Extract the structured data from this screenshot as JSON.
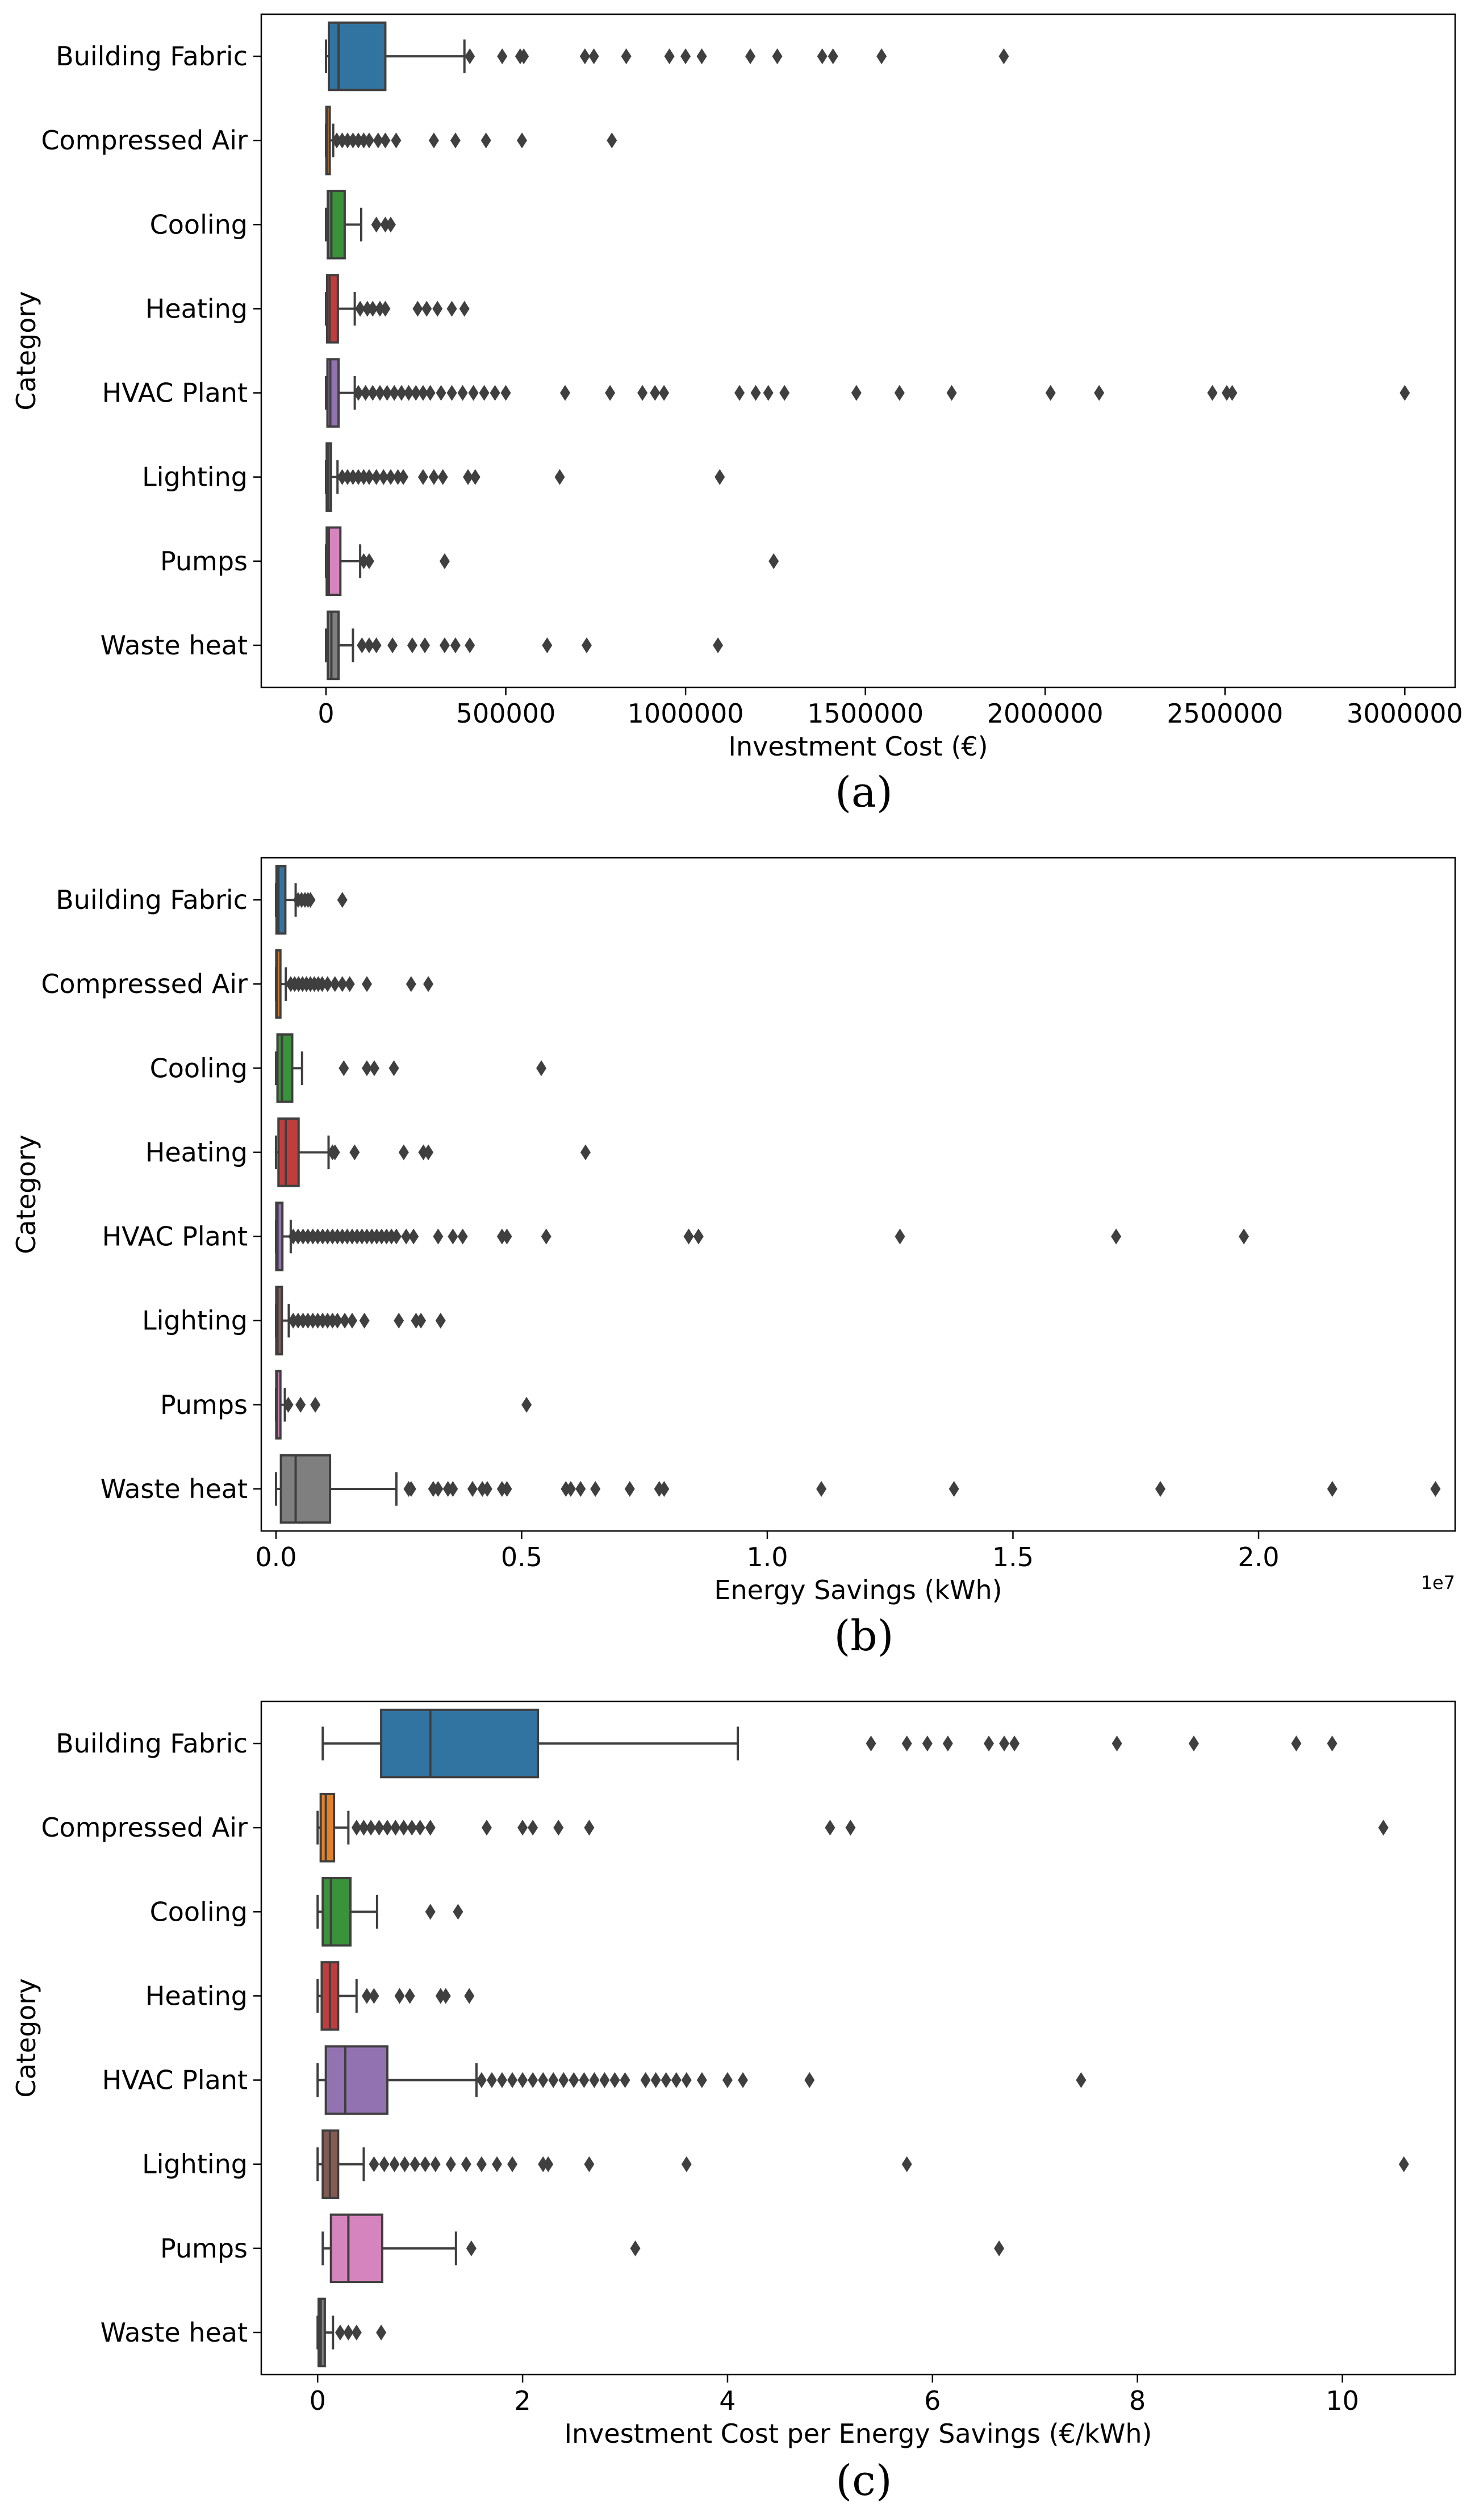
{
  "colors": {
    "Building Fabric": "#3274a1",
    "Compressed Air": "#e1812c",
    "Cooling": "#3a923a",
    "Heating": "#c03d3e",
    "HVAC Plant": "#9372b2",
    "Lighting": "#845b53",
    "Pumps": "#d684bd",
    "Waste heat": "#7f7f7f",
    "line": "#3f3f3f"
  },
  "chart_data": [
    {
      "type": "box",
      "panel_label": "(a)",
      "ylabel": "Category",
      "xlabel": "Investment Cost (€)",
      "x_exponent_label": "",
      "xlim": [
        -180000,
        3140000
      ],
      "xticks": [
        0,
        500000,
        1000000,
        1500000,
        2000000,
        2500000,
        3000000
      ],
      "xtick_labels": [
        "0",
        "500000",
        "1000000",
        "1500000",
        "2000000",
        "2500000",
        "3000000"
      ],
      "categories": [
        "Building Fabric",
        "Compressed Air",
        "Cooling",
        "Heating",
        "HVAC Plant",
        "Lighting",
        "Pumps",
        "Waste heat"
      ],
      "boxes": [
        {
          "min": 0,
          "q1": 8000,
          "median": 35000,
          "q3": 165000,
          "max": 385000,
          "outliers": [
            400000,
            490000,
            540000,
            550000,
            720000,
            745000,
            835000,
            955000,
            1000000,
            1045000,
            1180000,
            1255000,
            1380000,
            1410000,
            1545000,
            1885000
          ]
        },
        {
          "min": 0,
          "q1": 1000,
          "median": 3000,
          "q3": 9000,
          "max": 20000,
          "outliers": [
            30000,
            45000,
            60000,
            75000,
            90000,
            105000,
            120000,
            145000,
            165000,
            195000,
            300000,
            360000,
            445000,
            545000,
            795000
          ]
        },
        {
          "min": 0,
          "q1": 5000,
          "median": 15000,
          "q3": 52000,
          "max": 98000,
          "outliers": [
            140000,
            165000,
            180000
          ]
        },
        {
          "min": 0,
          "q1": 3000,
          "median": 10000,
          "q3": 33000,
          "max": 80000,
          "outliers": [
            95000,
            115000,
            130000,
            150000,
            165000,
            255000,
            280000,
            310000,
            350000,
            385000
          ]
        },
        {
          "min": 0,
          "q1": 4000,
          "median": 12000,
          "q3": 35000,
          "max": 80000,
          "outliers": [
            90000,
            110000,
            130000,
            150000,
            170000,
            190000,
            210000,
            230000,
            250000,
            270000,
            290000,
            320000,
            350000,
            380000,
            410000,
            440000,
            470000,
            500000,
            665000,
            790000,
            880000,
            915000,
            940000,
            1150000,
            1195000,
            1230000,
            1275000,
            1475000,
            1595000,
            1740000,
            2015000,
            2150000,
            2465000,
            2505000,
            2520000,
            3000000
          ]
        },
        {
          "min": 0,
          "q1": 2000,
          "median": 6000,
          "q3": 14000,
          "max": 32000,
          "outliers": [
            45000,
            60000,
            75000,
            90000,
            105000,
            120000,
            140000,
            160000,
            180000,
            200000,
            215000,
            270000,
            300000,
            325000,
            395000,
            415000,
            650000,
            1095000
          ]
        },
        {
          "min": 0,
          "q1": 2000,
          "median": 8000,
          "q3": 40000,
          "max": 95000,
          "outliers": [
            105000,
            120000,
            330000,
            1245000
          ]
        },
        {
          "min": 0,
          "q1": 5000,
          "median": 15000,
          "q3": 35000,
          "max": 75000,
          "outliers": [
            100000,
            120000,
            140000,
            185000,
            240000,
            275000,
            330000,
            360000,
            400000,
            615000,
            725000,
            1090000
          ]
        }
      ]
    },
    {
      "type": "box",
      "panel_label": "(b)",
      "ylabel": "Category",
      "xlabel": "Energy Savings (kWh)",
      "x_exponent_label": "1e7",
      "xlim": [
        -300000,
        24000000
      ],
      "xticks": [
        0,
        5000000,
        10000000,
        15000000,
        20000000
      ],
      "xtick_labels": [
        "0.0",
        "0.5",
        "1.0",
        "1.5",
        "2.0"
      ],
      "categories": [
        "Building Fabric",
        "Compressed Air",
        "Cooling",
        "Heating",
        "HVAC Plant",
        "Lighting",
        "Pumps",
        "Waste heat"
      ],
      "boxes": [
        {
          "min": 0,
          "q1": 10000,
          "median": 50000,
          "q3": 190000,
          "max": 400000,
          "outliers": [
            450000,
            520000,
            590000,
            650000,
            700000,
            1350000
          ]
        },
        {
          "min": 0,
          "q1": 5000,
          "median": 20000,
          "q3": 90000,
          "max": 200000,
          "outliers": [
            300000,
            380000,
            460000,
            540000,
            620000,
            700000,
            780000,
            860000,
            940000,
            1050000,
            1200000,
            1350000,
            1500000,
            1850000,
            2750000,
            3100000
          ]
        },
        {
          "min": 0,
          "q1": 30000,
          "median": 120000,
          "q3": 330000,
          "max": 530000,
          "outliers": [
            1380000,
            1850000,
            2000000,
            2400000,
            5400000
          ]
        },
        {
          "min": 0,
          "q1": 50000,
          "median": 200000,
          "q3": 460000,
          "max": 1070000,
          "outliers": [
            1150000,
            1200000,
            1600000,
            2600000,
            3000000,
            3100000,
            6300000
          ]
        },
        {
          "min": 0,
          "q1": 5000,
          "median": 30000,
          "q3": 130000,
          "max": 300000,
          "outliers": [
            350000,
            450000,
            550000,
            650000,
            750000,
            850000,
            950000,
            1050000,
            1150000,
            1250000,
            1350000,
            1450000,
            1550000,
            1650000,
            1750000,
            1850000,
            1950000,
            2050000,
            2150000,
            2250000,
            2350000,
            2450000,
            2650000,
            2800000,
            3300000,
            3600000,
            3800000,
            4600000,
            4700000,
            5500000,
            8400000,
            8600000,
            12700000,
            17100000,
            19700000
          ]
        },
        {
          "min": 0,
          "q1": 5000,
          "median": 30000,
          "q3": 120000,
          "max": 260000,
          "outliers": [
            350000,
            450000,
            550000,
            650000,
            750000,
            850000,
            950000,
            1050000,
            1150000,
            1250000,
            1400000,
            1550000,
            1800000,
            2500000,
            2850000,
            2950000,
            3350000
          ]
        },
        {
          "min": 0,
          "q1": 5000,
          "median": 20000,
          "q3": 90000,
          "max": 180000,
          "outliers": [
            250000,
            500000,
            800000,
            5100000
          ]
        },
        {
          "min": 0,
          "q1": 100000,
          "median": 400000,
          "q3": 1100000,
          "max": 2450000,
          "outliers": [
            2700000,
            2750000,
            3200000,
            3300000,
            3500000,
            3600000,
            4000000,
            4200000,
            4300000,
            4600000,
            4700000,
            5900000,
            6000000,
            6200000,
            6500000,
            7200000,
            7800000,
            7900000,
            11100000,
            13800000,
            18000000,
            21500000,
            23600000
          ]
        }
      ]
    },
    {
      "type": "box",
      "panel_label": "(c)",
      "ylabel": "Category",
      "xlabel": "Investment Cost per Energy Savings (€/kWh)",
      "x_exponent_label": "",
      "xlim": [
        -0.55,
        11.1
      ],
      "xticks": [
        0,
        2,
        4,
        6,
        8,
        10
      ],
      "xtick_labels": [
        "0",
        "2",
        "4",
        "6",
        "8",
        "10"
      ],
      "categories": [
        "Building Fabric",
        "Compressed Air",
        "Cooling",
        "Heating",
        "HVAC Plant",
        "Lighting",
        "Pumps",
        "Waste heat"
      ],
      "boxes": [
        {
          "min": 0.05,
          "q1": 0.62,
          "median": 1.1,
          "q3": 2.15,
          "max": 4.1,
          "outliers": [
            5.4,
            5.75,
            5.95,
            6.15,
            6.55,
            6.7,
            6.8,
            7.8,
            8.55,
            9.55,
            9.9
          ]
        },
        {
          "min": 0,
          "q1": 0.03,
          "median": 0.08,
          "q3": 0.16,
          "max": 0.3,
          "outliers": [
            0.38,
            0.45,
            0.52,
            0.6,
            0.68,
            0.76,
            0.84,
            0.92,
            1.0,
            1.1,
            1.65,
            2.0,
            2.1,
            2.35,
            2.65,
            5.0,
            5.2,
            10.4
          ]
        },
        {
          "min": 0,
          "q1": 0.05,
          "median": 0.13,
          "q3": 0.32,
          "max": 0.58,
          "outliers": [
            1.1,
            1.37
          ]
        },
        {
          "min": 0,
          "q1": 0.04,
          "median": 0.12,
          "q3": 0.2,
          "max": 0.38,
          "outliers": [
            0.48,
            0.55,
            0.8,
            0.9,
            1.2,
            1.25,
            1.48
          ]
        },
        {
          "min": 0,
          "q1": 0.08,
          "median": 0.27,
          "q3": 0.68,
          "max": 1.55,
          "outliers": [
            1.6,
            1.7,
            1.8,
            1.9,
            2.0,
            2.1,
            2.2,
            2.3,
            2.4,
            2.5,
            2.6,
            2.7,
            2.8,
            2.9,
            3.0,
            3.2,
            3.3,
            3.4,
            3.5,
            3.6,
            3.75,
            4.0,
            4.15,
            4.8,
            7.45
          ]
        },
        {
          "min": 0,
          "q1": 0.05,
          "median": 0.12,
          "q3": 0.2,
          "max": 0.45,
          "outliers": [
            0.55,
            0.65,
            0.75,
            0.85,
            0.95,
            1.05,
            1.15,
            1.3,
            1.45,
            1.6,
            1.75,
            1.9,
            2.2,
            2.25,
            2.65,
            3.6,
            5.75,
            10.6
          ]
        },
        {
          "min": 0.05,
          "q1": 0.13,
          "median": 0.3,
          "q3": 0.63,
          "max": 1.35,
          "outliers": [
            1.5,
            3.1,
            6.65
          ]
        },
        {
          "min": 0,
          "q1": 0.01,
          "median": 0.03,
          "q3": 0.07,
          "max": 0.15,
          "outliers": [
            0.22,
            0.3,
            0.38,
            0.62
          ]
        }
      ]
    }
  ]
}
